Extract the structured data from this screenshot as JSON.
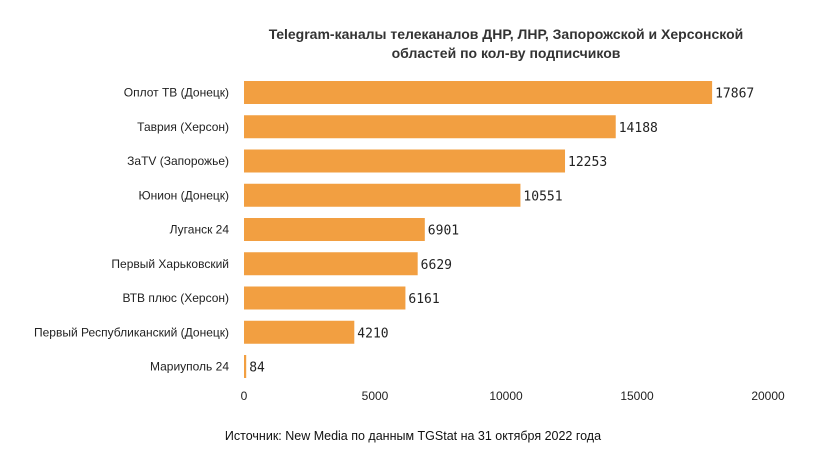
{
  "chart_data": {
    "type": "bar",
    "orientation": "horizontal",
    "title": "Telegram-каналы телеканалов ДНР, ЛНР, Запорожской и Херсонской областей по кол-ву подписчиков",
    "title_lines": [
      "Telegram-каналы телеканалов ДНР, ЛНР, Запорожской и Херсонской",
      "областей по кол-ву подписчиков"
    ],
    "categories": [
      "Оплот ТВ (Донецк)",
      "Таврия (Херсон)",
      "ЗаTV (Запорожье)",
      "Юнион (Донецк)",
      "Луганск 24",
      "Первый Харьковский",
      "ВТВ плюс (Херсон)",
      "Первый Республиканский (Донецк)",
      "Мариуполь 24"
    ],
    "values": [
      17867,
      14188,
      12253,
      10551,
      6901,
      6629,
      6161,
      4210,
      84
    ],
    "xlim": [
      0,
      20000
    ],
    "xticks": [
      0,
      5000,
      10000,
      15000,
      20000
    ],
    "xlabel": "",
    "ylabel": "",
    "grid": false,
    "legend": "none",
    "bar_color": "#f29f41",
    "source": "Источник: New Media по данным TGStat на 31 октября 2022 года"
  }
}
